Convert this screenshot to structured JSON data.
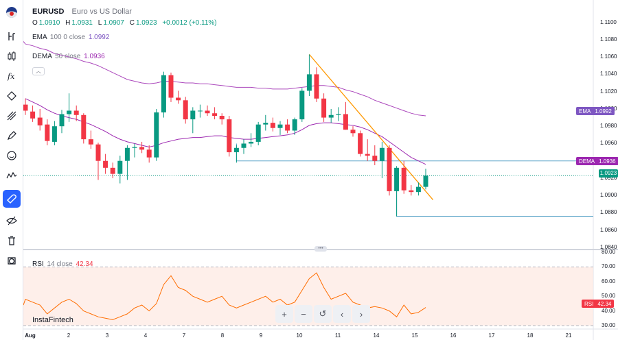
{
  "header": {
    "symbol": "EURUSD",
    "description": "Euro vs US Dollar",
    "ohlc": {
      "o_key": "O",
      "o_val": "1.0910",
      "h_key": "H",
      "h_val": "1.0931",
      "l_key": "L",
      "l_val": "1.0907",
      "c_key": "C",
      "c_val": "1.0923",
      "change": "+0.0012 (+0.11%)"
    }
  },
  "indicators": {
    "ema": {
      "name": "EMA",
      "params": "100  0  close",
      "value": "1.0992"
    },
    "dema": {
      "name": "DEMA",
      "params": "50  close",
      "value": "1.0936"
    },
    "rsi": {
      "name": "RSI",
      "params": "14  close",
      "value": "42.34"
    }
  },
  "price_scale": [
    "1.1100",
    "1.1080",
    "1.1060",
    "1.1040",
    "1.1020",
    "1.1000",
    "1.0980",
    "1.0960",
    "1.0940",
    "1.0920",
    "1.0900",
    "1.0880",
    "1.0860",
    "1.0840"
  ],
  "tags": {
    "ema": {
      "label": "EMA",
      "value": "1.0992",
      "color": "#7e57c2"
    },
    "dema": {
      "label": "DEMA",
      "value": "1.0936",
      "color": "#9c27b0"
    },
    "price": {
      "value": "1.0923",
      "color": "#089981"
    },
    "rsi": {
      "label": "RSI",
      "value": "42.34",
      "color": "#f23645"
    }
  },
  "rsi_scale": [
    "80.00",
    "70.00",
    "60.00",
    "50.00",
    "40.00",
    "30.00"
  ],
  "x_axis": [
    "Aug",
    "2",
    "3",
    "4",
    "7",
    "8",
    "9",
    "10",
    "11",
    "14",
    "15",
    "16",
    "17",
    "18",
    "21"
  ],
  "brand": "InstaFintech",
  "toolbar": [
    "crosshair-icon",
    "candles-icon",
    "fx-icon",
    "drawing-icon",
    "brush-icon",
    "pen-icon",
    "emoji-icon",
    "measure-icon",
    "magnet-icon",
    "eye-icon",
    "trash-icon",
    "camera-icon"
  ],
  "nav_buttons": [
    "+",
    "−",
    "↺",
    "‹",
    "›"
  ],
  "colors": {
    "up": "#089981",
    "down": "#f23645",
    "ema": "#ab47bc",
    "dema": "#9c27b0",
    "trend": "#ff9800",
    "rsi": "#ff6d00"
  },
  "chart_data": {
    "type": "candlestick",
    "ylim": [
      1.084,
      1.111
    ],
    "rsi_ylim": [
      30,
      80
    ],
    "candles": [
      {
        "o": 1.1005,
        "h": 1.1012,
        "l": 1.0993,
        "c": 1.0998
      },
      {
        "o": 1.0997,
        "h": 1.1004,
        "l": 1.0985,
        "c": 1.0989
      },
      {
        "o": 1.099,
        "h": 1.1,
        "l": 1.0975,
        "c": 1.0981
      },
      {
        "o": 1.0982,
        "h": 1.0988,
        "l": 1.0958,
        "c": 1.0963
      },
      {
        "o": 1.0962,
        "h": 1.0986,
        "l": 1.0958,
        "c": 1.098
      },
      {
        "o": 1.098,
        "h": 1.0999,
        "l": 1.0972,
        "c": 1.0994
      },
      {
        "o": 1.0994,
        "h": 1.1018,
        "l": 1.0985,
        "c": 1.0998
      },
      {
        "o": 1.0998,
        "h": 1.1004,
        "l": 1.0986,
        "c": 1.0993
      },
      {
        "o": 1.0993,
        "h": 1.0995,
        "l": 1.096,
        "c": 1.0965
      },
      {
        "o": 1.0965,
        "h": 1.0975,
        "l": 1.0954,
        "c": 1.0959
      },
      {
        "o": 1.0959,
        "h": 1.0961,
        "l": 1.0918,
        "c": 1.094
      },
      {
        "o": 1.094,
        "h": 1.0948,
        "l": 1.0925,
        "c": 1.0932
      },
      {
        "o": 1.0932,
        "h": 1.0938,
        "l": 1.092,
        "c": 1.0925
      },
      {
        "o": 1.0925,
        "h": 1.0946,
        "l": 1.0914,
        "c": 1.094
      },
      {
        "o": 1.094,
        "h": 1.0958,
        "l": 1.0918,
        "c": 1.0955
      },
      {
        "o": 1.0955,
        "h": 1.096,
        "l": 1.0944,
        "c": 1.0956
      },
      {
        "o": 1.0956,
        "h": 1.0962,
        "l": 1.0949,
        "c": 1.0953
      },
      {
        "o": 1.0953,
        "h": 1.0958,
        "l": 1.0938,
        "c": 1.0944
      },
      {
        "o": 1.0944,
        "h": 1.1,
        "l": 1.094,
        "c": 1.0996
      },
      {
        "o": 1.0996,
        "h": 1.1043,
        "l": 1.099,
        "c": 1.1039
      },
      {
        "o": 1.1039,
        "h": 1.1042,
        "l": 1.1008,
        "c": 1.1013
      },
      {
        "o": 1.1013,
        "h": 1.1021,
        "l": 1.1006,
        "c": 1.101
      },
      {
        "o": 1.101,
        "h": 1.1014,
        "l": 1.0983,
        "c": 1.0988
      },
      {
        "o": 1.0988,
        "h": 1.1002,
        "l": 1.0972,
        "c": 1.0998
      },
      {
        "o": 1.0998,
        "h": 1.1005,
        "l": 1.099,
        "c": 1.0998
      },
      {
        "o": 1.0998,
        "h": 1.1004,
        "l": 1.0992,
        "c": 1.0995
      },
      {
        "o": 1.0995,
        "h": 1.1002,
        "l": 1.0988,
        "c": 1.0992
      },
      {
        "o": 1.0992,
        "h": 1.0995,
        "l": 1.0982,
        "c": 1.0988
      },
      {
        "o": 1.0988,
        "h": 1.0992,
        "l": 1.0945,
        "c": 1.095
      },
      {
        "o": 1.095,
        "h": 1.0958,
        "l": 1.0938,
        "c": 1.0955
      },
      {
        "o": 1.0955,
        "h": 1.0965,
        "l": 1.0948,
        "c": 1.096
      },
      {
        "o": 1.096,
        "h": 1.0972,
        "l": 1.0956,
        "c": 1.0962
      },
      {
        "o": 1.0962,
        "h": 1.0985,
        "l": 1.0958,
        "c": 1.0982
      },
      {
        "o": 1.0982,
        "h": 1.0993,
        "l": 1.0975,
        "c": 1.0984
      },
      {
        "o": 1.0984,
        "h": 1.099,
        "l": 1.0974,
        "c": 1.0978
      },
      {
        "o": 1.0978,
        "h": 1.0986,
        "l": 1.097,
        "c": 1.0982
      },
      {
        "o": 1.0982,
        "h": 1.0988,
        "l": 1.0972,
        "c": 1.0975
      },
      {
        "o": 1.0975,
        "h": 1.099,
        "l": 1.097,
        "c": 1.0988
      },
      {
        "o": 1.0988,
        "h": 1.1024,
        "l": 1.0985,
        "c": 1.1021
      },
      {
        "o": 1.1021,
        "h": 1.1063,
        "l": 1.1015,
        "c": 1.104
      },
      {
        "o": 1.104,
        "h": 1.1048,
        "l": 1.1008,
        "c": 1.1012
      },
      {
        "o": 1.1012,
        "h": 1.1018,
        "l": 1.0985,
        "c": 1.099
      },
      {
        "o": 1.099,
        "h": 1.1,
        "l": 1.0984,
        "c": 1.0993
      },
      {
        "o": 1.0993,
        "h": 1.1002,
        "l": 1.0986,
        "c": 1.0994
      },
      {
        "o": 1.0994,
        "h": 1.1008,
        "l": 1.0976,
        "c": 1.0976
      },
      {
        "o": 1.0976,
        "h": 1.098,
        "l": 1.0968,
        "c": 1.0972
      },
      {
        "o": 1.0972,
        "h": 1.0975,
        "l": 1.0945,
        "c": 1.0948
      },
      {
        "o": 1.0948,
        "h": 1.0965,
        "l": 1.094,
        "c": 1.0946
      },
      {
        "o": 1.0946,
        "h": 1.0958,
        "l": 1.0935,
        "c": 1.094
      },
      {
        "o": 1.094,
        "h": 1.0962,
        "l": 1.092,
        "c": 1.0955
      },
      {
        "o": 1.0955,
        "h": 1.0958,
        "l": 1.09,
        "c": 1.0905
      },
      {
        "o": 1.0905,
        "h": 1.0934,
        "l": 1.0876,
        "c": 1.0932
      },
      {
        "o": 1.0932,
        "h": 1.094,
        "l": 1.0902,
        "c": 1.0906
      },
      {
        "o": 1.0906,
        "h": 1.0912,
        "l": 1.09,
        "c": 1.0904
      },
      {
        "o": 1.0904,
        "h": 1.0915,
        "l": 1.09,
        "c": 1.091
      },
      {
        "o": 1.091,
        "h": 1.0931,
        "l": 1.0907,
        "c": 1.0923
      }
    ],
    "ema": [
      1.1075,
      1.1073,
      1.107,
      1.1068,
      1.1064,
      1.1062,
      1.106,
      1.1058,
      1.1055,
      1.1053,
      1.105,
      1.1046,
      1.1042,
      1.1038,
      1.1034,
      1.1032,
      1.103,
      1.1029,
      1.103,
      1.1032,
      1.1032,
      1.1031,
      1.103,
      1.103,
      1.1029,
      1.1029,
      1.1028,
      1.1027,
      1.1026,
      1.1025,
      1.1025,
      1.1025,
      1.1024,
      1.1024,
      1.1023,
      1.1023,
      1.1023,
      1.1024,
      1.1025,
      1.1026,
      1.1027,
      1.1027,
      1.1026,
      1.1025,
      1.1022,
      1.102,
      1.1017,
      1.1014,
      1.101,
      1.1007,
      1.1004,
      1.1001,
      1.0998,
      1.0995,
      1.0993,
      1.0992
    ],
    "dema": [
      1.1012,
      1.1008,
      1.1004,
      1.0999,
      1.0995,
      1.0992,
      1.099,
      1.0988,
      1.0985,
      1.0982,
      1.0978,
      1.0974,
      1.0969,
      1.0965,
      1.0962,
      1.096,
      1.0958,
      1.0956,
      1.0958,
      1.0961,
      1.0963,
      1.0965,
      1.0966,
      1.0967,
      1.0967,
      1.0968,
      1.0969,
      1.0969,
      1.0967,
      1.0966,
      1.0965,
      1.0965,
      1.0966,
      1.0967,
      1.0968,
      1.0969,
      1.097,
      1.0972,
      1.0976,
      1.0981,
      1.0983,
      1.0984,
      1.0984,
      1.0983,
      1.0982,
      1.0981,
      1.0979,
      1.0976,
      1.0972,
      1.0968,
      1.0962,
      1.0956,
      1.095,
      1.0944,
      1.094,
      1.0936
    ],
    "trendline": [
      {
        "i": 39,
        "p": 1.1063
      },
      {
        "i": 56,
        "p": 1.0895
      }
    ],
    "support_high": 1.094,
    "support_low": 1.0876,
    "rsi": [
      48,
      46,
      44,
      38,
      42,
      46,
      48,
      45,
      40,
      38,
      36,
      35,
      34,
      36,
      38,
      42,
      44,
      40,
      45,
      58,
      64,
      56,
      54,
      50,
      48,
      46,
      48,
      50,
      44,
      42,
      44,
      46,
      48,
      50,
      46,
      48,
      44,
      46,
      54,
      62,
      66,
      56,
      48,
      50,
      52,
      46,
      44,
      42,
      43,
      42,
      40,
      36,
      44,
      38,
      39,
      42.34
    ]
  }
}
